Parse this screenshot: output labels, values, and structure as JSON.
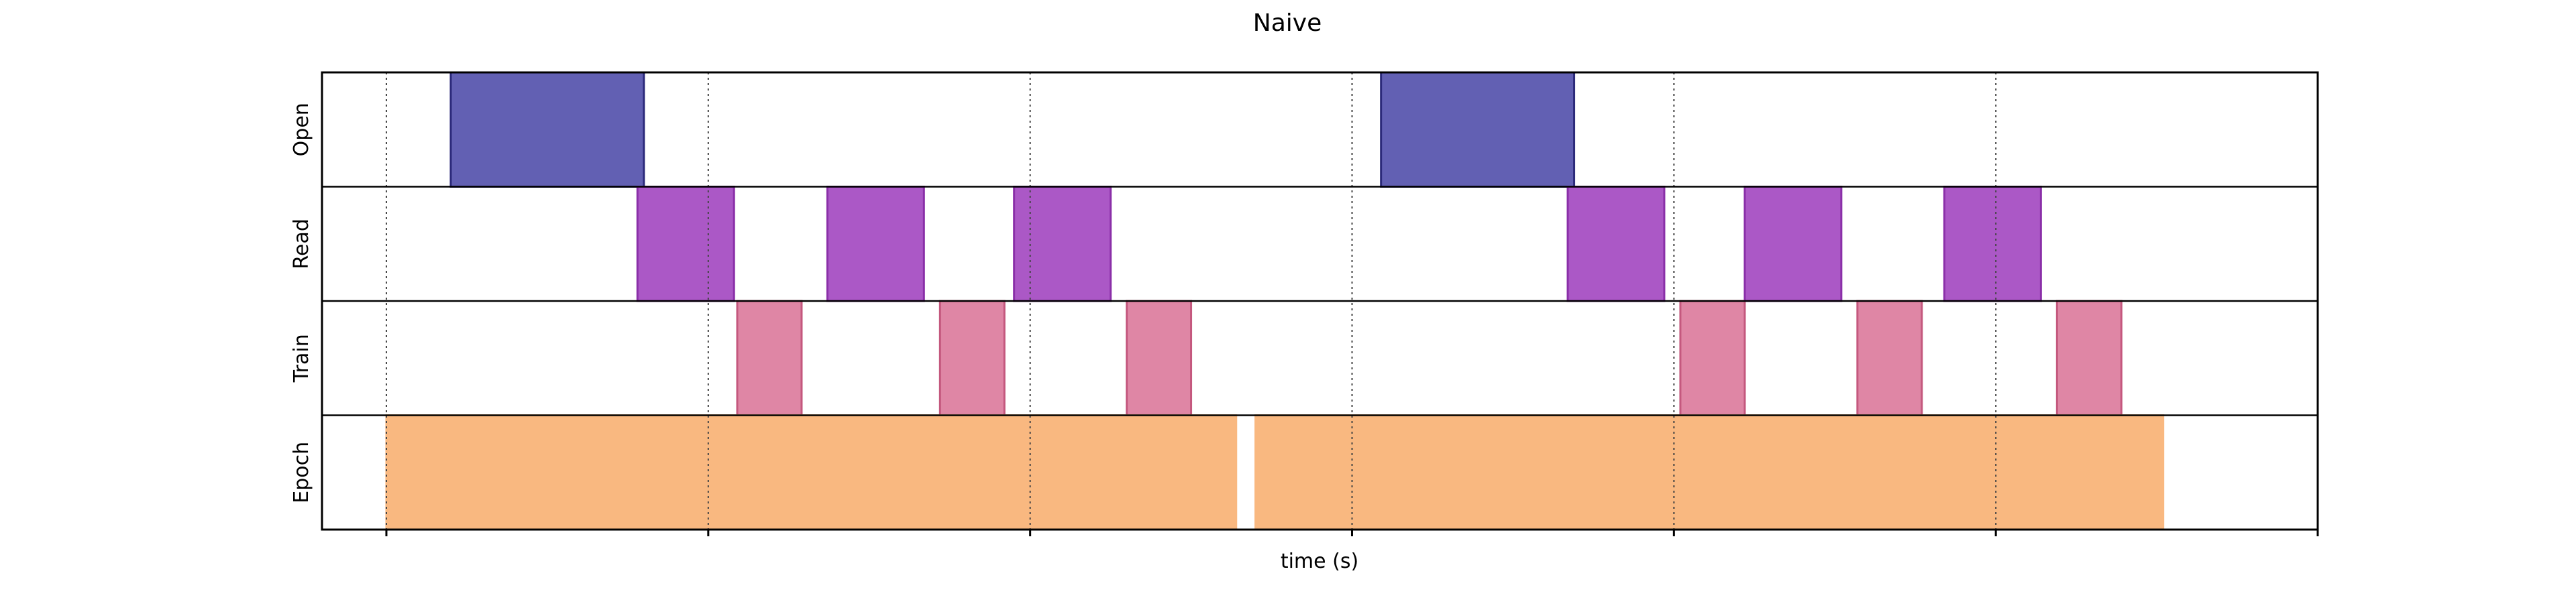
{
  "chart_data": {
    "type": "timeline",
    "title": "Naive",
    "xlabel": "time (s)",
    "ylabel": "",
    "xlim": [
      -0.2,
      6.0
    ],
    "ylim": [
      0,
      4
    ],
    "x_ticks": [
      0,
      1,
      2,
      3,
      4,
      5,
      6
    ],
    "x_tick_labels": [],
    "grid": "vertical dotted lines at each x tick",
    "lanes": [
      {
        "label": "Open",
        "color": "#6260b3",
        "edge": "#2c2a7a",
        "intervals": [
          [
            0.2,
            0.8
          ],
          [
            3.09,
            3.69
          ]
        ]
      },
      {
        "label": "Read",
        "color": "#ab58c6",
        "edge": "#8a2fa8",
        "intervals": [
          [
            0.78,
            1.08
          ],
          [
            1.37,
            1.67
          ],
          [
            1.95,
            2.25
          ],
          [
            3.67,
            3.97
          ],
          [
            4.22,
            4.52
          ],
          [
            4.84,
            5.14
          ]
        ]
      },
      {
        "label": "Train",
        "color": "#df86a5",
        "edge": "#c4587e",
        "intervals": [
          [
            1.09,
            1.29
          ],
          [
            1.72,
            1.92
          ],
          [
            2.3,
            2.5
          ],
          [
            4.02,
            4.22
          ],
          [
            4.57,
            4.77
          ],
          [
            5.19,
            5.39
          ]
        ]
      },
      {
        "label": "Epoch",
        "color": "#f9b880",
        "edge": "#f9b880",
        "intervals": [
          [
            0.0,
            2.64
          ],
          [
            2.7,
            5.52
          ]
        ]
      }
    ]
  }
}
